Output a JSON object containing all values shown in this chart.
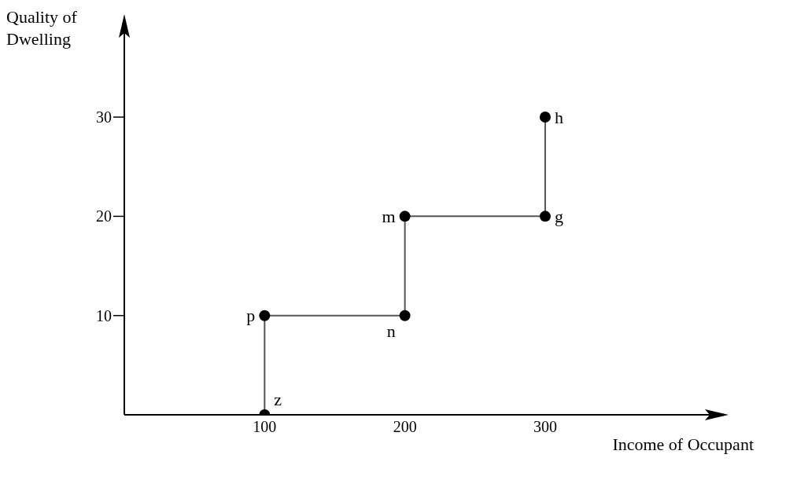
{
  "chart_data": {
    "type": "line",
    "xlabel": "Income of Occupant",
    "ylabel": "Quality of Dwelling",
    "x": [
      100,
      100,
      200,
      200,
      300,
      300
    ],
    "series": [
      {
        "color": "#555555",
        "values": [
          0,
          10,
          10,
          20,
          20,
          30
        ]
      }
    ],
    "xlim": [
      0,
      415
    ],
    "xticks": [
      100,
      200,
      300
    ],
    "ylim": [
      0,
      38
    ],
    "yticks": [
      10,
      20,
      30
    ],
    "grid": false,
    "legend": false,
    "marker": "circle",
    "line_style": "solid",
    "annotations": [
      {
        "text": "z",
        "x": 100,
        "y": 0
      },
      {
        "text": "p",
        "x": 100,
        "y": 10
      },
      {
        "text": "n",
        "x": 200,
        "y": 10
      },
      {
        "text": "m",
        "x": 200,
        "y": 20
      },
      {
        "text": "g",
        "x": 300,
        "y": 20
      },
      {
        "text": "h",
        "x": 300,
        "y": 30
      }
    ]
  }
}
